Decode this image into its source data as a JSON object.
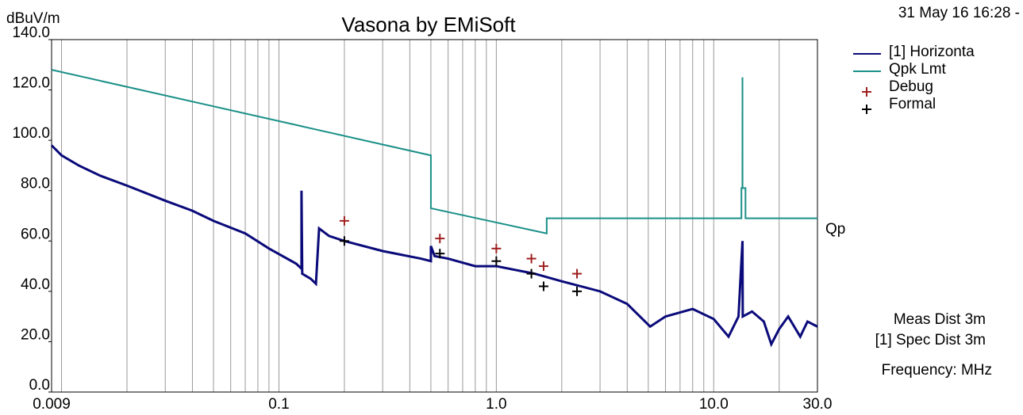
{
  "chart_data": {
    "type": "line",
    "title": "Vasona by EMiSoft",
    "ylabel": "dBuV/m",
    "xlabel": "Frequency: MHz",
    "timestamp": "31 May 16 16:28 -",
    "annotations": [
      "Qp",
      "Meas Dist 3m",
      "[1] Spec Dist 3m"
    ],
    "xscale": "log",
    "xlim": [
      0.009,
      30
    ],
    "ylim": [
      0,
      140
    ],
    "xticks": [
      0.009,
      {
        "value": 0.1,
        "label": "0.1"
      },
      {
        "value": 1,
        "label": "1.0"
      },
      {
        "value": 10,
        "label": "10.0"
      },
      {
        "value": 30,
        "label": "30.0"
      }
    ],
    "xminor": [
      0.01,
      0.02,
      0.03,
      0.04,
      0.05,
      0.06,
      0.07,
      0.08,
      0.09,
      0.2,
      0.3,
      0.4,
      0.5,
      0.6,
      0.7,
      0.8,
      0.9,
      2,
      3,
      4,
      5,
      6,
      7,
      8,
      9,
      20
    ],
    "yticks": [
      {
        "value": 0,
        "label": "0.0"
      },
      {
        "value": 20,
        "label": "20.0"
      },
      {
        "value": 40,
        "label": "40.0"
      },
      {
        "value": 60,
        "label": "60.0"
      },
      {
        "value": 80,
        "label": "80.0"
      },
      {
        "value": 100,
        "label": "100.0"
      },
      {
        "value": 120,
        "label": "120.0"
      },
      {
        "value": 140,
        "label": "140.0"
      }
    ],
    "grid": true,
    "series": [
      {
        "name": "[1] Horizonta",
        "color": "#0a0a7a",
        "kind": "line",
        "x": [
          0.009,
          0.01,
          0.012,
          0.015,
          0.02,
          0.03,
          0.04,
          0.05,
          0.07,
          0.09,
          0.12,
          0.127,
          0.127,
          0.128,
          0.14,
          0.148,
          0.153,
          0.17,
          0.2,
          0.3,
          0.45,
          0.5,
          0.5,
          0.52,
          0.6,
          0.8,
          1.0,
          1.5,
          2,
          3,
          4,
          5.1,
          6,
          8,
          10,
          11.7,
          13,
          13.56,
          13.6,
          15,
          17,
          18.4,
          20,
          22,
          25,
          27,
          30
        ],
        "values": [
          98,
          94,
          90,
          86,
          82,
          76,
          72,
          68,
          63,
          57,
          51,
          49,
          80,
          47,
          45,
          43,
          65,
          62,
          60,
          56,
          53,
          52,
          58,
          54,
          53,
          50,
          50,
          47,
          44,
          40,
          35,
          26,
          30,
          33,
          29,
          22,
          30,
          60,
          30,
          32,
          28,
          19,
          25,
          30,
          22,
          28,
          26
        ]
      },
      {
        "name": "Qpk Lmt",
        "color": "#1a9088",
        "kind": "line",
        "x": [
          0.009,
          0.5,
          0.5,
          1.705,
          1.705,
          13.41,
          13.41,
          13.55,
          13.56,
          13.57,
          14.0,
          14.0,
          30
        ],
        "values": [
          128,
          94,
          73,
          63,
          69,
          69,
          81,
          81,
          125,
          81,
          81,
          69,
          69
        ]
      },
      {
        "name": "Debug",
        "color": "#a02020",
        "kind": "marker",
        "x": [
          0.2,
          0.55,
          1.0,
          1.45,
          1.65,
          2.35
        ],
        "values": [
          68,
          61,
          57,
          53,
          50,
          47
        ]
      },
      {
        "name": "Formal",
        "color": "#000000",
        "kind": "marker",
        "x": [
          0.2,
          0.55,
          1.0,
          1.45,
          1.65,
          2.35
        ],
        "values": [
          60,
          55,
          52,
          47,
          42,
          40
        ]
      }
    ]
  }
}
